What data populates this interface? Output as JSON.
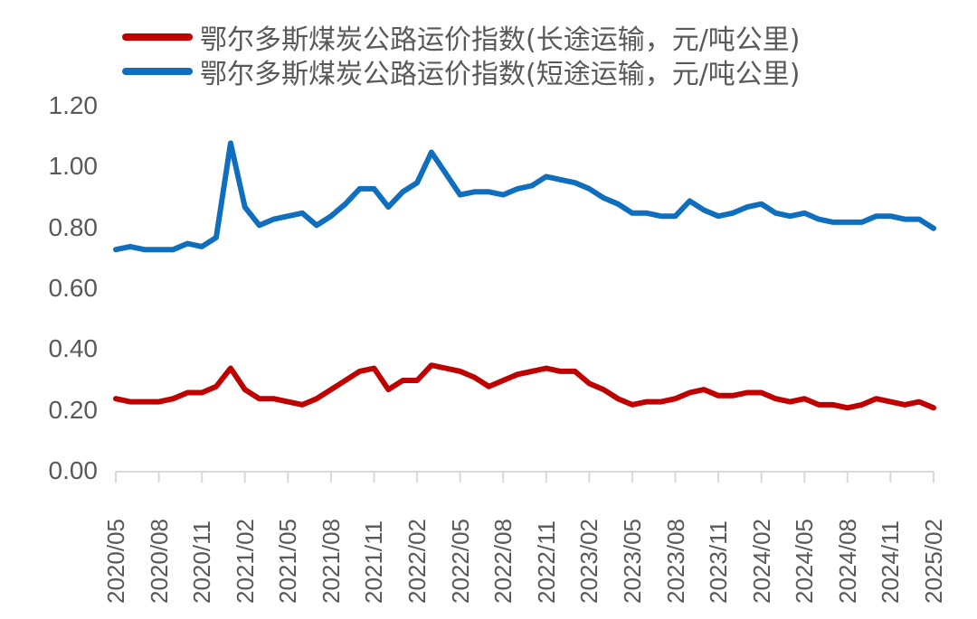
{
  "chart_data": {
    "type": "line",
    "title": "",
    "xlabel": "",
    "ylabel": "",
    "ylim": [
      0,
      1.2
    ],
    "yticks": [
      "0.00",
      "0.20",
      "0.40",
      "0.60",
      "0.80",
      "1.00",
      "1.20"
    ],
    "xticks": [
      "2020/05",
      "2020/08",
      "2020/11",
      "2021/02",
      "2021/05",
      "2021/08",
      "2021/11",
      "2022/02",
      "2022/05",
      "2022/08",
      "2022/11",
      "2023/02",
      "2023/05",
      "2023/08",
      "2023/11",
      "2024/02",
      "2024/05",
      "2024/08",
      "2024/11",
      "2025/02"
    ],
    "grid": false,
    "legend_position": "top",
    "series": [
      {
        "name": "鄂尔多斯煤炭公路运价指数(长途运输，元/吨公里)",
        "color": "#C00000",
        "points": [
          [
            "2020/05",
            0.24
          ],
          [
            "2020/06",
            0.23
          ],
          [
            "2020/07",
            0.23
          ],
          [
            "2020/08",
            0.23
          ],
          [
            "2020/09",
            0.24
          ],
          [
            "2020/10",
            0.26
          ],
          [
            "2020/11",
            0.26
          ],
          [
            "2020/12",
            0.28
          ],
          [
            "2021/01",
            0.34
          ],
          [
            "2021/02",
            0.27
          ],
          [
            "2021/03",
            0.24
          ],
          [
            "2021/04",
            0.24
          ],
          [
            "2021/05",
            0.23
          ],
          [
            "2021/06",
            0.22
          ],
          [
            "2021/07",
            0.24
          ],
          [
            "2021/08",
            0.27
          ],
          [
            "2021/09",
            0.3
          ],
          [
            "2021/10",
            0.33
          ],
          [
            "2021/11",
            0.34
          ],
          [
            "2021/12",
            0.27
          ],
          [
            "2022/01",
            0.3
          ],
          [
            "2022/02",
            0.3
          ],
          [
            "2022/03",
            0.35
          ],
          [
            "2022/04",
            0.34
          ],
          [
            "2022/05",
            0.33
          ],
          [
            "2022/06",
            0.31
          ],
          [
            "2022/07",
            0.28
          ],
          [
            "2022/08",
            0.3
          ],
          [
            "2022/09",
            0.32
          ],
          [
            "2022/10",
            0.33
          ],
          [
            "2022/11",
            0.34
          ],
          [
            "2022/12",
            0.33
          ],
          [
            "2023/01",
            0.33
          ],
          [
            "2023/02",
            0.29
          ],
          [
            "2023/03",
            0.27
          ],
          [
            "2023/04",
            0.24
          ],
          [
            "2023/05",
            0.22
          ],
          [
            "2023/06",
            0.23
          ],
          [
            "2023/07",
            0.23
          ],
          [
            "2023/08",
            0.24
          ],
          [
            "2023/09",
            0.26
          ],
          [
            "2023/10",
            0.27
          ],
          [
            "2023/11",
            0.25
          ],
          [
            "2023/12",
            0.25
          ],
          [
            "2024/01",
            0.26
          ],
          [
            "2024/02",
            0.26
          ],
          [
            "2024/03",
            0.24
          ],
          [
            "2024/04",
            0.23
          ],
          [
            "2024/05",
            0.24
          ],
          [
            "2024/06",
            0.22
          ],
          [
            "2024/07",
            0.22
          ],
          [
            "2024/08",
            0.21
          ],
          [
            "2024/09",
            0.22
          ],
          [
            "2024/10",
            0.24
          ],
          [
            "2024/11",
            0.23
          ],
          [
            "2024/12",
            0.22
          ],
          [
            "2025/01",
            0.23
          ],
          [
            "2025/02",
            0.21
          ]
        ]
      },
      {
        "name": "鄂尔多斯煤炭公路运价指数(短途运输，元/吨公里)",
        "color": "#0F6EBE",
        "points": [
          [
            "2020/05",
            0.73
          ],
          [
            "2020/06",
            0.74
          ],
          [
            "2020/07",
            0.73
          ],
          [
            "2020/08",
            0.73
          ],
          [
            "2020/09",
            0.73
          ],
          [
            "2020/10",
            0.75
          ],
          [
            "2020/11",
            0.74
          ],
          [
            "2020/12",
            0.77
          ],
          [
            "2021/01",
            1.08
          ],
          [
            "2021/02",
            0.87
          ],
          [
            "2021/03",
            0.81
          ],
          [
            "2021/04",
            0.83
          ],
          [
            "2021/05",
            0.84
          ],
          [
            "2021/06",
            0.85
          ],
          [
            "2021/07",
            0.81
          ],
          [
            "2021/08",
            0.84
          ],
          [
            "2021/09",
            0.88
          ],
          [
            "2021/10",
            0.93
          ],
          [
            "2021/11",
            0.93
          ],
          [
            "2021/12",
            0.87
          ],
          [
            "2022/01",
            0.92
          ],
          [
            "2022/02",
            0.95
          ],
          [
            "2022/03",
            1.05
          ],
          [
            "2022/04",
            0.98
          ],
          [
            "2022/05",
            0.91
          ],
          [
            "2022/06",
            0.92
          ],
          [
            "2022/07",
            0.92
          ],
          [
            "2022/08",
            0.91
          ],
          [
            "2022/09",
            0.93
          ],
          [
            "2022/10",
            0.94
          ],
          [
            "2022/11",
            0.97
          ],
          [
            "2022/12",
            0.96
          ],
          [
            "2023/01",
            0.95
          ],
          [
            "2023/02",
            0.93
          ],
          [
            "2023/03",
            0.9
          ],
          [
            "2023/04",
            0.88
          ],
          [
            "2023/05",
            0.85
          ],
          [
            "2023/06",
            0.85
          ],
          [
            "2023/07",
            0.84
          ],
          [
            "2023/08",
            0.84
          ],
          [
            "2023/09",
            0.89
          ],
          [
            "2023/10",
            0.86
          ],
          [
            "2023/11",
            0.84
          ],
          [
            "2023/12",
            0.85
          ],
          [
            "2024/01",
            0.87
          ],
          [
            "2024/02",
            0.88
          ],
          [
            "2024/03",
            0.85
          ],
          [
            "2024/04",
            0.84
          ],
          [
            "2024/05",
            0.85
          ],
          [
            "2024/06",
            0.83
          ],
          [
            "2024/07",
            0.82
          ],
          [
            "2024/08",
            0.82
          ],
          [
            "2024/09",
            0.82
          ],
          [
            "2024/10",
            0.84
          ],
          [
            "2024/11",
            0.84
          ],
          [
            "2024/12",
            0.83
          ],
          [
            "2025/01",
            0.83
          ],
          [
            "2025/02",
            0.8
          ]
        ]
      }
    ]
  },
  "legend": {
    "items": [
      {
        "label": "鄂尔多斯煤炭公路运价指数(长途运输，元/吨公里)",
        "color": "#C00000"
      },
      {
        "label": "鄂尔多斯煤炭公路运价指数(短途运输，元/吨公里)",
        "color": "#0F6EBE"
      }
    ]
  },
  "axis_color": "#D9D9D9",
  "text_color": "#595959"
}
